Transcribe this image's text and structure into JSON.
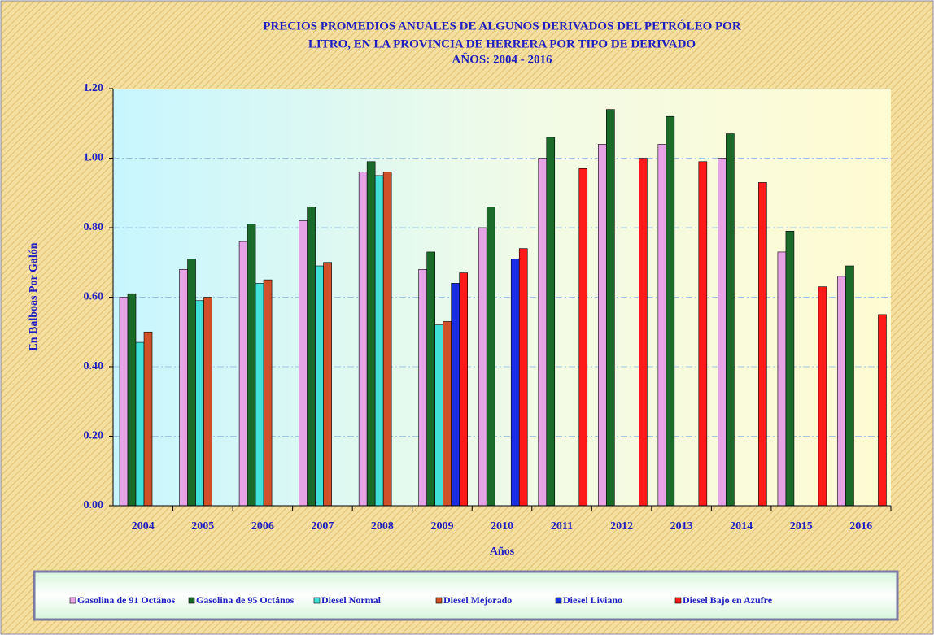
{
  "chart_data": {
    "type": "bar",
    "title": [
      "PRECIOS PROMEDIOS ANUALES DE ALGUNOS DERIVADOS DEL PETRÓLEO POR",
      "LITRO, EN LA PROVINCIA DE HERRERA POR TIPO DE DERIVADO",
      "AÑOS: 2004 - 2016"
    ],
    "x_label": "Años",
    "y_label": "En Balboas Por Galón",
    "categories": [
      "2004",
      "2005",
      "2006",
      "2007",
      "2008",
      "2009",
      "2010",
      "2011",
      "2012",
      "2013",
      "2014",
      "2015",
      "2016"
    ],
    "series": [
      {
        "name": "Gasolina de 91 Octános",
        "color": "#e6a3e6",
        "values": [
          0.6,
          0.68,
          0.76,
          0.82,
          0.96,
          0.68,
          0.8,
          1.0,
          1.04,
          1.04,
          1.0,
          0.73,
          0.66
        ]
      },
      {
        "name": "Gasolina de 95 Octános",
        "color": "#1a6b2a",
        "values": [
          0.61,
          0.71,
          0.81,
          0.86,
          0.99,
          0.73,
          0.86,
          1.06,
          1.14,
          1.12,
          1.07,
          0.79,
          0.69
        ]
      },
      {
        "name": "Diesel Normal",
        "color": "#40e0d8",
        "values": [
          0.47,
          0.59,
          0.64,
          0.69,
          0.95,
          0.52,
          null,
          null,
          null,
          null,
          null,
          null,
          null
        ]
      },
      {
        "name": "Diesel Mejorado",
        "color": "#d0502a",
        "values": [
          0.5,
          0.6,
          0.65,
          0.7,
          0.96,
          0.53,
          null,
          null,
          null,
          null,
          null,
          null,
          null
        ]
      },
      {
        "name": "Diesel Liviano",
        "color": "#1a2ee6",
        "values": [
          null,
          null,
          null,
          null,
          null,
          0.64,
          0.71,
          null,
          null,
          null,
          null,
          null,
          null
        ]
      },
      {
        "name": "Diesel Bajo en Azufre",
        "color": "#ff1a1a",
        "values": [
          null,
          null,
          null,
          null,
          null,
          0.67,
          0.74,
          0.97,
          1.0,
          0.99,
          0.93,
          0.63,
          0.55
        ]
      }
    ],
    "ylim": [
      0,
      1.2
    ],
    "yticks": [
      {
        "value": 0,
        "label": "0.00"
      },
      {
        "value": 0.2,
        "label": "0.20"
      },
      {
        "value": 0.4,
        "label": "0.40"
      },
      {
        "value": 0.6,
        "label": "0.60"
      },
      {
        "value": 0.8,
        "label": "0.80"
      },
      {
        "value": 1.0,
        "label": "1.00"
      },
      {
        "value": 1.2,
        "label": "1.20"
      }
    ],
    "grid": true,
    "legend": "bottom"
  }
}
